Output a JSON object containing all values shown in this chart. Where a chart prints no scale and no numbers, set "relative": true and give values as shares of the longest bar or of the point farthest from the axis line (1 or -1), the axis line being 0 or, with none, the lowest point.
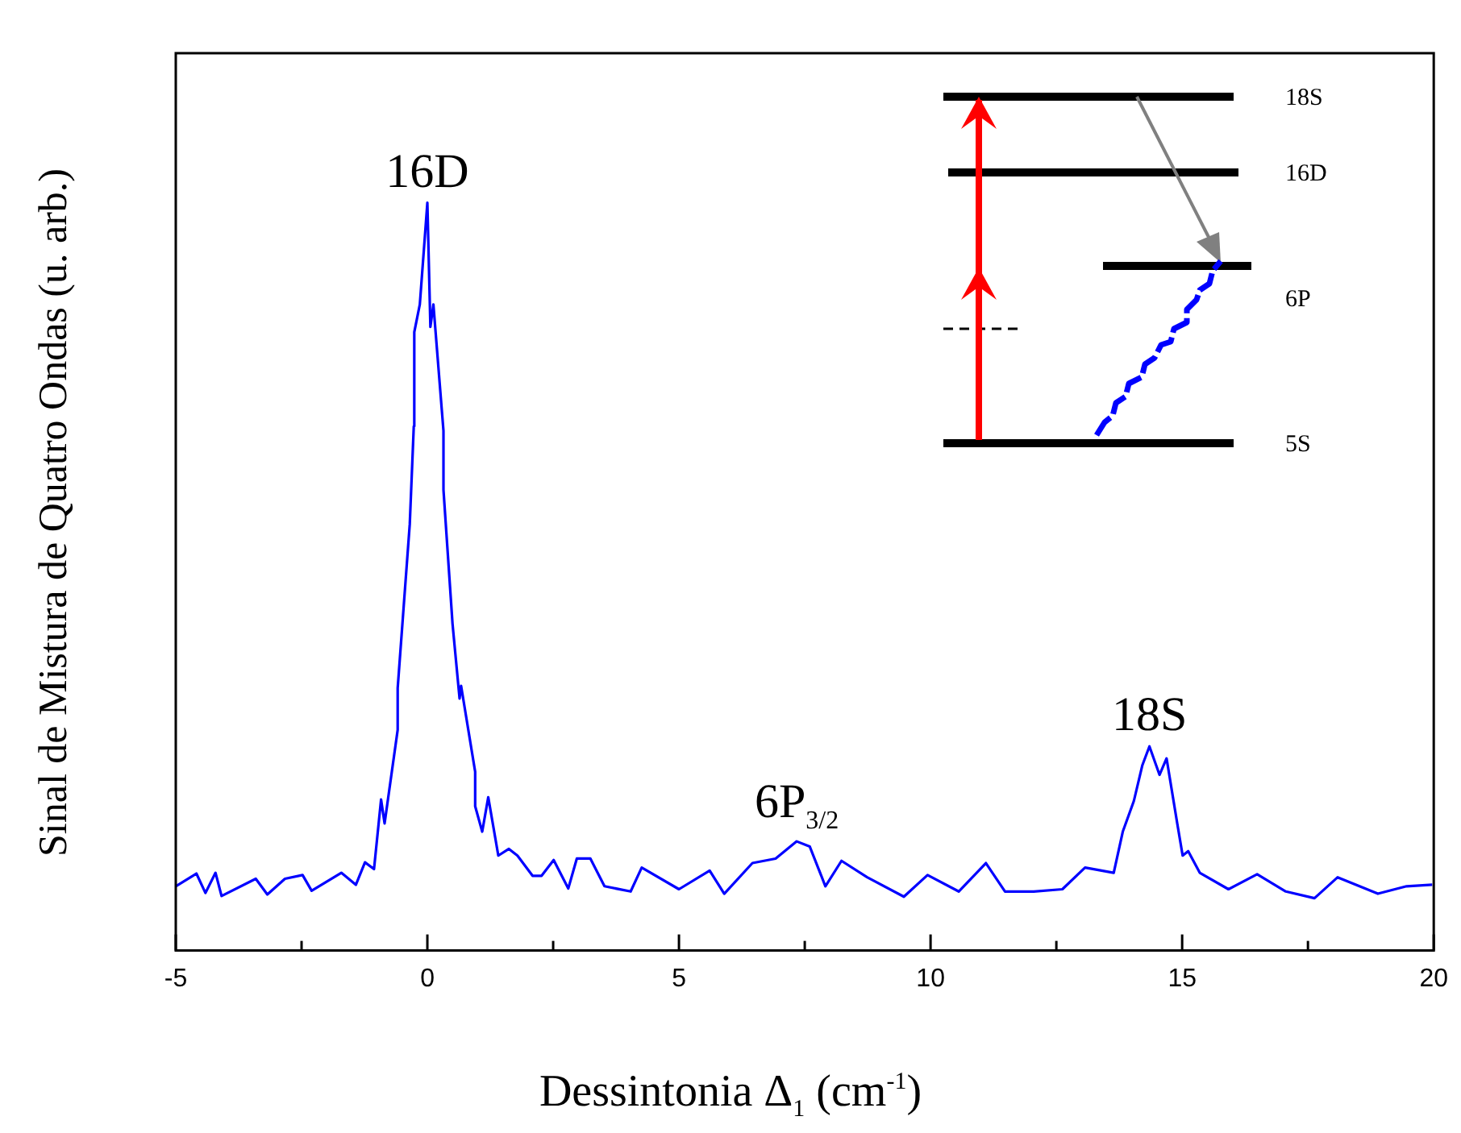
{
  "chart_data": {
    "type": "line",
    "xlabel": "Dessintonia Δ$_{1}$ (cm$^{-1}$)",
    "ylabel": "Sinal de Mistura de Quatro Ondas (u. arb.)",
    "relative": true,
    "color": "#0000ff",
    "marker": "none",
    "x": [
      -5.0,
      -4.59,
      -4.41,
      -4.21,
      -4.09,
      -3.41,
      -3.18,
      -2.83,
      -2.48,
      -2.3,
      -1.71,
      -1.42,
      -1.24,
      -1.06,
      -0.92,
      -0.85,
      -0.59,
      -0.59,
      -0.35,
      -0.27,
      -0.26,
      -0.15,
      0.0,
      0.06,
      0.12,
      0.32,
      0.32,
      0.5,
      0.64,
      0.67,
      0.95,
      0.95,
      1.09,
      1.21,
      1.41,
      1.62,
      1.79,
      2.09,
      2.27,
      2.51,
      2.8,
      2.97,
      3.24,
      3.52,
      4.04,
      4.26,
      5.0,
      5.61,
      5.9,
      6.46,
      6.92,
      7.34,
      7.6,
      7.91,
      8.23,
      8.74,
      9.47,
      9.94,
      10.56,
      11.1,
      11.48,
      12.05,
      12.62,
      13.07,
      13.64,
      13.82,
      14.04,
      14.21,
      14.35,
      14.55,
      14.69,
      14.9,
      15.01,
      15.12,
      15.35,
      15.92,
      16.49,
      17.06,
      17.63,
      18.09,
      18.89,
      19.46,
      19.97
    ],
    "values": [
      0.086,
      0.103,
      0.077,
      0.104,
      0.073,
      0.096,
      0.075,
      0.096,
      0.101,
      0.08,
      0.104,
      0.088,
      0.118,
      0.109,
      0.202,
      0.17,
      0.295,
      0.351,
      0.57,
      0.701,
      0.827,
      0.864,
      1,
      0.834,
      0.864,
      0.695,
      0.616,
      0.437,
      0.337,
      0.354,
      0.239,
      0.193,
      0.159,
      0.205,
      0.127,
      0.136,
      0.127,
      0.1,
      0.1,
      0.121,
      0.083,
      0.123,
      0.123,
      0.086,
      0.079,
      0.111,
      0.082,
      0.107,
      0.076,
      0.117,
      0.123,
      0.146,
      0.139,
      0.086,
      0.12,
      0.098,
      0.072,
      0.101,
      0.079,
      0.117,
      0.079,
      0.079,
      0.082,
      0.111,
      0.104,
      0.159,
      0.2,
      0.248,
      0.273,
      0.235,
      0.257,
      0.171,
      0.127,
      0.133,
      0.104,
      0.082,
      0.102,
      0.079,
      0.07,
      0.098,
      0.076,
      0.086,
      0.088
    ],
    "xlim": [
      -5,
      20
    ],
    "xticks": [
      -5,
      {
        "value": -2.5,
        "label": null
      },
      0,
      {
        "value": 2.5,
        "label": null
      },
      5,
      {
        "value": 7.5,
        "label": null
      },
      10,
      {
        "value": 12.5,
        "label": null
      },
      15,
      {
        "value": 17.5,
        "label": null
      },
      20
    ],
    "annotations": [
      {
        "text": "16D",
        "x": 0.0,
        "y": 1
      },
      {
        "text": "6P$_{3/2}$",
        "x": 7.34,
        "y": 0.146
      },
      {
        "text": "18S",
        "x": 14.35,
        "y": 0.273
      },
      "18S",
      "16D",
      "6P",
      "5S"
    ]
  }
}
